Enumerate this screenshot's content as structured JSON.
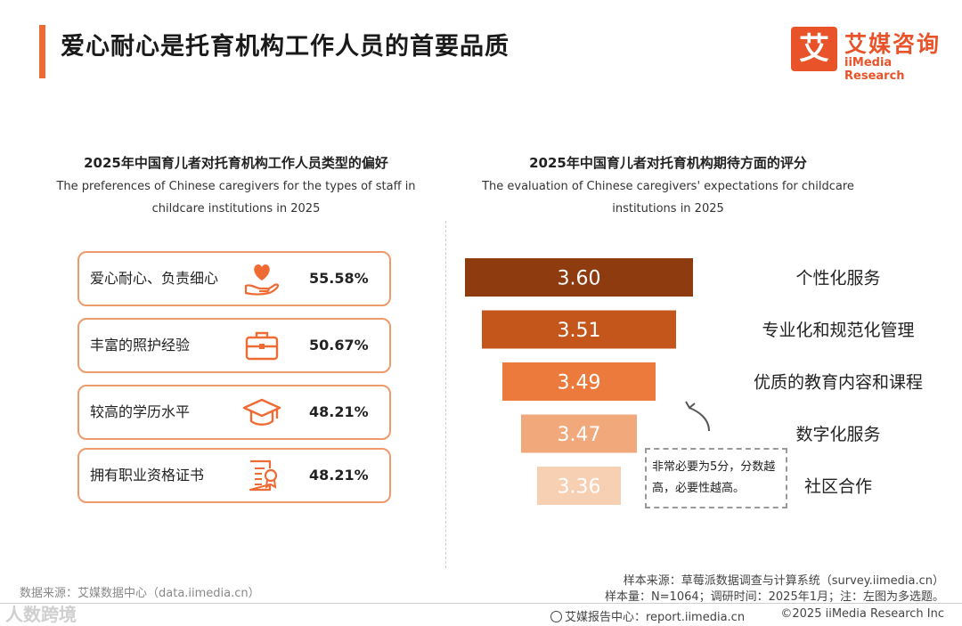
{
  "header": {
    "title": "爱心耐心是托育机构工作人员的首要品质",
    "logo_mark": "艾",
    "logo_cn": "艾媒咨询",
    "logo_en": "iiMedia Research"
  },
  "left_panel": {
    "title": "2025年中国育儿者对托育机构工作人员类型的偏好",
    "subtitle_line1": "The preferences of Chinese caregivers for the types of staff in",
    "subtitle_line2": "childcare institutions in 2025",
    "items": [
      {
        "label": "爱心耐心、负责细心",
        "value": "55.58%",
        "icon": "heart-hand-icon"
      },
      {
        "label": "丰富的照护经验",
        "value": "50.67%",
        "icon": "briefcase-icon"
      },
      {
        "label": "较高的学历水平",
        "value": "48.21%",
        "icon": "graduation-cap-icon"
      },
      {
        "label": "拥有职业资格证书",
        "value": "48.21%",
        "icon": "certificate-icon"
      }
    ]
  },
  "right_panel": {
    "title": "2025年中国育儿者对托育机构期待方面的评分",
    "subtitle_line1": "The evaluation of Chinese caregivers' expectations for childcare",
    "subtitle_line2": "institutions in 2025",
    "note": "非常必要为5分，分数越高，必要性越高。"
  },
  "chart_data": [
    {
      "type": "table",
      "title": "2025年中国育儿者对托育机构工作人员类型的偏好",
      "categories": [
        "爱心耐心、负责细心",
        "丰富的照护经验",
        "较高的学历水平",
        "拥有职业资格证书"
      ],
      "values": [
        55.58,
        50.67,
        48.21,
        48.21
      ],
      "unit": "%"
    },
    {
      "type": "bar",
      "title": "2025年中国育儿者对托育机构期待方面的评分",
      "orientation": "horizontal-funnel",
      "categories": [
        "个性化服务",
        "专业化和规范化管理",
        "优质的教育内容和课程",
        "数字化服务",
        "社区合作"
      ],
      "values": [
        3.6,
        3.51,
        3.49,
        3.47,
        3.36
      ],
      "value_labels": [
        "3.60",
        "3.51",
        "3.49",
        "3.47",
        "3.36"
      ],
      "colors": [
        "#8e3c0f",
        "#c4561c",
        "#eb7a3c",
        "#f1a87a",
        "#f7cfb3"
      ],
      "xlabel": "",
      "ylabel": "",
      "xlim": [
        0,
        5
      ]
    }
  ],
  "footer": {
    "source": "数据来源：艾媒数据中心（data.iimedia.cn）",
    "sample_source": "样本来源：草莓派数据调查与计算系统（survey.iimedia.cn）",
    "sample_info": "样本量：N=1064；调研时间：2025年1月；注：左图为多选题。",
    "report_center": "艾媒报告中心：report.iimedia.cn",
    "copyright": "©2025  iiMedia Research  Inc",
    "watermark": "人数跨境"
  }
}
